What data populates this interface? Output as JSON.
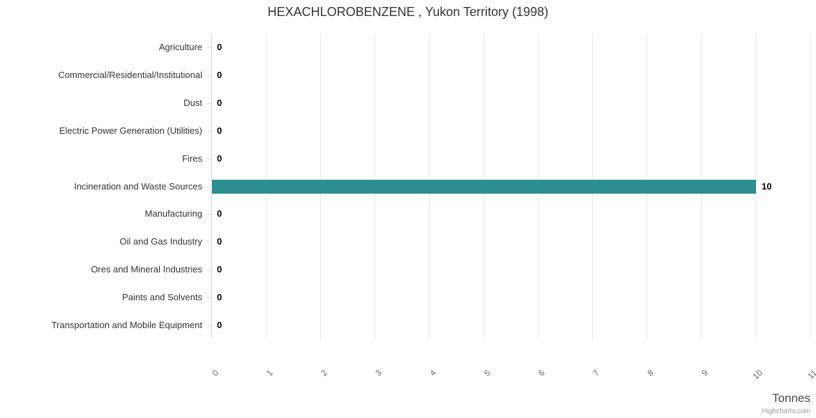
{
  "chart_data": {
    "type": "bar",
    "orientation": "horizontal",
    "title": "HEXACHLOROBENZENE , Yukon Territory (1998)",
    "categories": [
      "Agriculture",
      "Commercial/Residential/Institutional",
      "Dust",
      "Electric Power Generation (Utilities)",
      "Fires",
      "Incineration and Waste Sources",
      "Manufacturing",
      "Oil and Gas Industry",
      "Ores and Mineral Industries",
      "Paints and Solvents",
      "Transportation and Mobile Equipment"
    ],
    "values": [
      0,
      0,
      0,
      0,
      0,
      10,
      0,
      0,
      0,
      0,
      0
    ],
    "data_labels": [
      "0",
      "0",
      "0",
      "0",
      "0",
      "10",
      "0",
      "0",
      "0",
      "0",
      "0"
    ],
    "xlabel": "Tonnes",
    "xlim": [
      0,
      11
    ],
    "x_ticks": [
      0,
      1,
      2,
      3,
      4,
      5,
      6,
      7,
      8,
      9,
      10,
      11
    ],
    "grid": true,
    "legend": false
  },
  "colors": {
    "bar": "#2b908f",
    "gridline": "#e6e6e6",
    "axis_line": "#ccd6eb",
    "title_text": "#333333",
    "category_text": "#333333",
    "data_label_text": "#000000",
    "tick_label_text": "#666666",
    "axis_title_text": "#4a4a4a",
    "credits_text": "#999999"
  },
  "credits": "Highcharts.com"
}
